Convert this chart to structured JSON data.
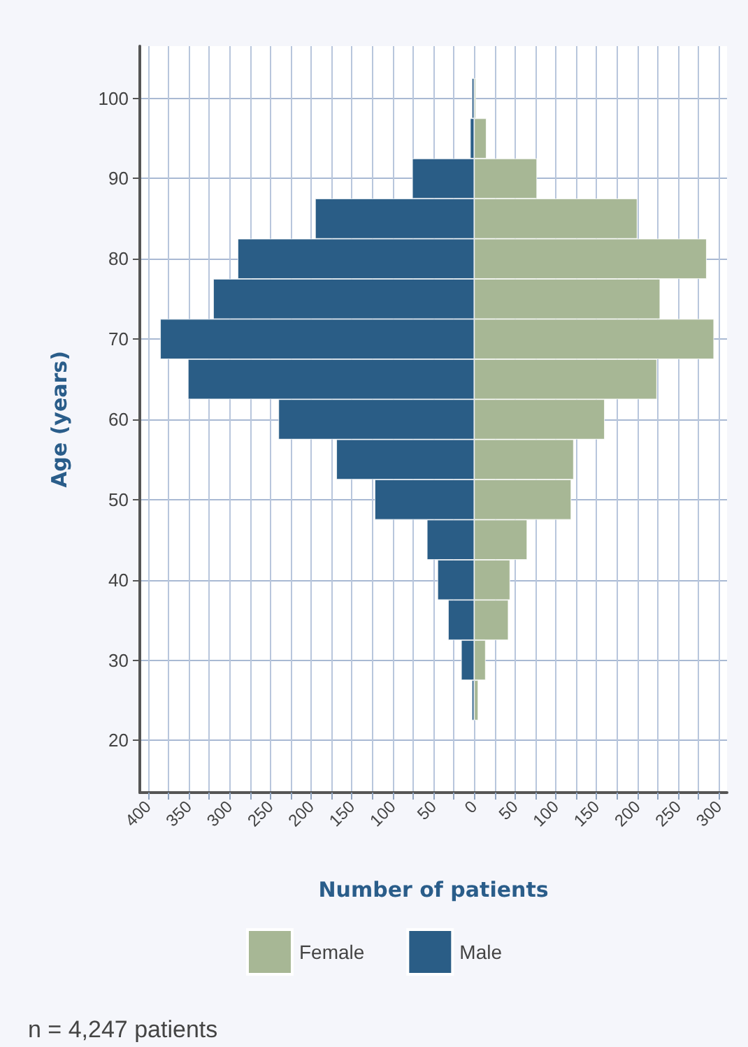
{
  "chart_data": {
    "type": "bar",
    "orientation": "horizontal",
    "stacked": true,
    "xlabel": "Number of patients",
    "ylabel": "Age (years)",
    "x": [
      100,
      95,
      90,
      85,
      80,
      75,
      70,
      65,
      60,
      55,
      50,
      45,
      40,
      35,
      30,
      25
    ],
    "series": [
      {
        "name": "Female",
        "color": "#a7b795",
        "values": [
          2,
          15,
          77,
          200,
          285,
          228,
          294,
          224,
          160,
          122,
          119,
          65,
          44,
          42,
          14,
          5
        ]
      },
      {
        "name": "Male",
        "color": "#2a5d86",
        "values": [
          -3,
          -5,
          -76,
          -195,
          -290,
          -320,
          -385,
          -351,
          -240,
          -169,
          -122,
          -58,
          -45,
          -32,
          -16,
          -3
        ]
      }
    ],
    "xlim": [
      -410,
      310
    ],
    "xticks": [
      {
        "value": -400,
        "label": "400"
      },
      {
        "value": -375,
        "label": null
      },
      {
        "value": -350,
        "label": "350"
      },
      {
        "value": -325,
        "label": null
      },
      {
        "value": -300,
        "label": "300"
      },
      {
        "value": -275,
        "label": null
      },
      {
        "value": -250,
        "label": "250"
      },
      {
        "value": -225,
        "label": null
      },
      {
        "value": -200,
        "label": "200"
      },
      {
        "value": -175,
        "label": null
      },
      {
        "value": -150,
        "label": "150"
      },
      {
        "value": -125,
        "label": null
      },
      {
        "value": -100,
        "label": "100"
      },
      {
        "value": -75,
        "label": null
      },
      {
        "value": -50,
        "label": "50"
      },
      {
        "value": -25,
        "label": null
      },
      0,
      {
        "value": 25,
        "label": null
      },
      50,
      {
        "value": 75,
        "label": null
      },
      100,
      {
        "value": 125,
        "label": null
      },
      150,
      {
        "value": 175,
        "label": null
      },
      200,
      {
        "value": 225,
        "label": null
      },
      250,
      {
        "value": 275,
        "label": null
      },
      300
    ],
    "ylim": [
      13.5,
      106.5
    ],
    "yticks": [
      20,
      30,
      40,
      50,
      60,
      70,
      80,
      90,
      100
    ],
    "grid": true,
    "legend": "bottom",
    "annotations": [
      "n = 4,247 patients"
    ]
  }
}
